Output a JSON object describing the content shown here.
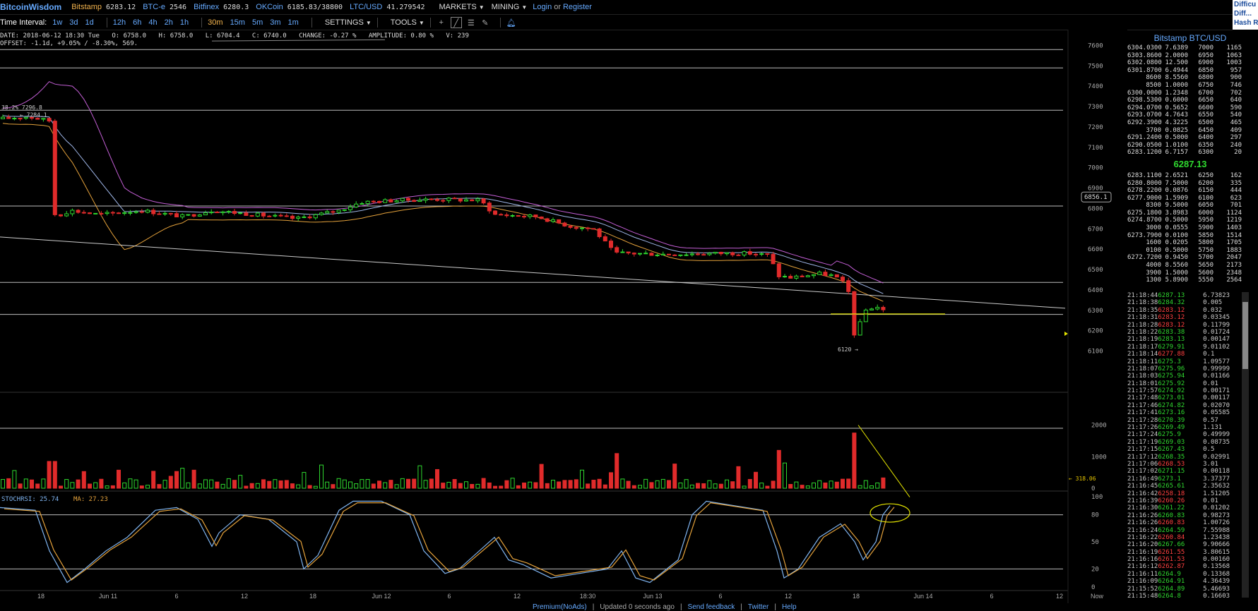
{
  "header": {
    "logo": "BitcoinWisdom",
    "tickers": [
      {
        "name": "Bitstamp",
        "price": "6283.12",
        "color": "orange"
      },
      {
        "name": "BTC-e",
        "price": "2546",
        "color": "blue"
      },
      {
        "name": "Bitfinex",
        "price": "6280.3",
        "color": "blue"
      },
      {
        "name": "OKCoin",
        "price": "6185.83/38800",
        "color": "blue"
      },
      {
        "name": "LTC/USD",
        "price": "41.279542",
        "color": "blue"
      }
    ],
    "markets_label": "MARKETS",
    "mining_label": "MINING",
    "login_label": "Login",
    "or_label": "or",
    "register_label": "Register",
    "difficulty_lines": [
      "Difficu",
      "Diff...",
      "Hash R"
    ]
  },
  "toolbar": {
    "interval_label": "Time Interval:",
    "intervals": [
      "1w",
      "3d",
      "1d",
      "12h",
      "6h",
      "4h",
      "2h",
      "1h",
      "30m",
      "15m",
      "5m",
      "3m",
      "1m"
    ],
    "active_interval": "30m",
    "settings_label": "SETTINGS",
    "tools_label": "TOOLS"
  },
  "info": {
    "line1": [
      "DATE: 2018-06-12 18:30 Tue",
      "O: 6758.0",
      "H: 6758.0",
      "L: 6704.4",
      "C: 6740.0",
      "CHANGE: -0.27 %",
      "AMPLITUDE: 0.80 %",
      "V: 239"
    ],
    "line2": "OFFSET: -1.1d, +9.05% / -8.30%, 569."
  },
  "chart_data": {
    "type": "candlestick",
    "price_axis": [
      "7600",
      "7500",
      "7400",
      "7300",
      "7200",
      "7100",
      "7000",
      "6900",
      "6800",
      "6700",
      "6600",
      "6500",
      "6400",
      "6300",
      "6200",
      "6100"
    ],
    "volume_axis": [
      "2000",
      "1000",
      "0"
    ],
    "rsi_axis": [
      "100",
      "80",
      "50",
      "20",
      "0"
    ],
    "time_axis": [
      "18",
      "Jun 11",
      "6",
      "12",
      "18",
      "Jun 12",
      "6",
      "12",
      "18:30",
      "Jun 13",
      "6",
      "12",
      "18",
      "Jun 14",
      "6",
      "12",
      "Now"
    ],
    "price_range": [
      6050,
      7650
    ],
    "hover_price": "6856.1",
    "annotations": [
      "38.2% 7296.8",
      "7284.1",
      "6120"
    ],
    "volume_marker": "318.06",
    "stochrsi_label": "STOCHRSI: 25.74",
    "ma_label": "MA: 27.23"
  },
  "orderbook": {
    "title": "Bitstamp BTC/USD",
    "asks": [
      [
        "6304.0300",
        "7.6389",
        "7000",
        "1165"
      ],
      [
        "6303.8600",
        "2.0000",
        "6950",
        "1063"
      ],
      [
        "6302.0800",
        "12.500",
        "6900",
        "1003"
      ],
      [
        "6301.8700",
        "6.4944",
        "6850",
        "957"
      ],
      [
        "8600",
        "8.5560",
        "6800",
        "900"
      ],
      [
        "8500",
        "1.0000",
        "6750",
        "746"
      ],
      [
        "6300.0000",
        "1.2348",
        "6700",
        "702"
      ],
      [
        "6298.5300",
        "0.6000",
        "6650",
        "640"
      ],
      [
        "6294.0700",
        "0.5652",
        "6600",
        "590"
      ],
      [
        "6293.0700",
        "4.7643",
        "6550",
        "540"
      ],
      [
        "6292.3900",
        "4.3225",
        "6500",
        "465"
      ],
      [
        "3700",
        "0.0825",
        "6450",
        "409"
      ],
      [
        "6291.2400",
        "0.5000",
        "6400",
        "297"
      ],
      [
        "6290.0500",
        "1.0100",
        "6350",
        "240"
      ],
      [
        "6283.1200",
        "6.7157",
        "6300",
        "20"
      ]
    ],
    "last_price": "6287.13",
    "bids": [
      [
        "6283.1100",
        "2.6521",
        "6250",
        "162"
      ],
      [
        "6280.8000",
        "7.5000",
        "6200",
        "335"
      ],
      [
        "6278.2200",
        "0.0876",
        "6150",
        "444"
      ],
      [
        "6277.9000",
        "1.5909",
        "6100",
        "623"
      ],
      [
        "8300",
        "9.5000",
        "6050",
        "701"
      ],
      [
        "6275.1800",
        "3.8983",
        "6000",
        "1124"
      ],
      [
        "6274.8700",
        "0.5000",
        "5950",
        "1219"
      ],
      [
        "3000",
        "0.0555",
        "5900",
        "1403"
      ],
      [
        "6273.7900",
        "0.0100",
        "5850",
        "1514"
      ],
      [
        "1600",
        "0.0205",
        "5800",
        "1705"
      ],
      [
        "0100",
        "0.5000",
        "5750",
        "1883"
      ],
      [
        "6272.7200",
        "0.9450",
        "5700",
        "2047"
      ],
      [
        "4000",
        "8.5560",
        "5650",
        "2173"
      ],
      [
        "3900",
        "1.5000",
        "5600",
        "2348"
      ],
      [
        "1300",
        "5.8900",
        "5550",
        "2564"
      ]
    ]
  },
  "trades": [
    [
      "21:18:44",
      "6287.13",
      "6.73823",
      "up"
    ],
    [
      "21:18:38",
      "6284.32",
      "0.005",
      "up"
    ],
    [
      "21:18:35",
      "6283.12",
      "0.032",
      "dn"
    ],
    [
      "21:18:31",
      "6283.12",
      "0.03345",
      "dn"
    ],
    [
      "21:18:28",
      "6283.12",
      "0.11799",
      "dn"
    ],
    [
      "21:18:22",
      "6283.38",
      "0.01724",
      "up"
    ],
    [
      "21:18:19",
      "6283.13",
      "0.00147",
      "up"
    ],
    [
      "21:18:17",
      "6279.91",
      "9.01102",
      "up"
    ],
    [
      "21:18:14",
      "6277.88",
      "0.1",
      "dn"
    ],
    [
      "21:18:11",
      "6275.3",
      "1.09577",
      "up"
    ],
    [
      "21:18:07",
      "6275.96",
      "0.99999",
      "up"
    ],
    [
      "21:18:03",
      "6275.94",
      "0.01166",
      "up"
    ],
    [
      "21:18:01",
      "6275.92",
      "0.01",
      "up"
    ],
    [
      "21:17:57",
      "6274.92",
      "0.00171",
      "up"
    ],
    [
      "21:17:48",
      "6273.01",
      "0.00117",
      "up"
    ],
    [
      "21:17:46",
      "6274.82",
      "0.02070",
      "up"
    ],
    [
      "21:17:41",
      "6273.16",
      "0.05585",
      "up"
    ],
    [
      "21:17:28",
      "6270.39",
      "0.57",
      "up"
    ],
    [
      "21:17:26",
      "6269.49",
      "1.131",
      "up"
    ],
    [
      "21:17:24",
      "6275.9",
      "0.49999",
      "up"
    ],
    [
      "21:17:19",
      "6269.03",
      "0.08735",
      "up"
    ],
    [
      "21:17:15",
      "6267.43",
      "0.5",
      "up"
    ],
    [
      "21:17:12",
      "6268.35",
      "0.02991",
      "up"
    ],
    [
      "21:17:06",
      "6268.53",
      "3.01",
      "dn"
    ],
    [
      "21:17:02",
      "6271.15",
      "0.00118",
      "up"
    ],
    [
      "21:16:49",
      "6273.1",
      "3.37377",
      "up"
    ],
    [
      "21:16:45",
      "6265.61",
      "2.35632",
      "up"
    ],
    [
      "21:16:42",
      "6258.18",
      "1.51205",
      "dn"
    ],
    [
      "21:16:39",
      "6260.26",
      "0.01",
      "dn"
    ],
    [
      "21:16:30",
      "6261.22",
      "0.01202",
      "up"
    ],
    [
      "21:16:26",
      "6260.83",
      "0.98273",
      "up"
    ],
    [
      "21:16:26",
      "6260.83",
      "1.00726",
      "dn"
    ],
    [
      "21:16:24",
      "6264.59",
      "7.55988",
      "up"
    ],
    [
      "21:16:22",
      "6260.84",
      "1.23438",
      "dn"
    ],
    [
      "21:16:20",
      "6267.66",
      "9.90666",
      "up"
    ],
    [
      "21:16:19",
      "6261.55",
      "3.80615",
      "dn"
    ],
    [
      "21:16:16",
      "6261.53",
      "0.00160",
      "dn"
    ],
    [
      "21:16:12",
      "6262.87",
      "0.13568",
      "dn"
    ],
    [
      "21:16:11",
      "6264.9",
      "0.13368",
      "up"
    ],
    [
      "21:16:09",
      "6264.91",
      "4.36439",
      "up"
    ],
    [
      "21:15:52",
      "6264.89",
      "5.46693",
      "up"
    ],
    [
      "21:15:48",
      "6264.8",
      "0.16603",
      "up"
    ]
  ],
  "footer": {
    "premium_label": "Premium(NoAds)",
    "updated_label": "Updated 0 seconds ago",
    "feedback_label": "Send feedback",
    "twitter_label": "Twitter",
    "help_label": "Help"
  }
}
